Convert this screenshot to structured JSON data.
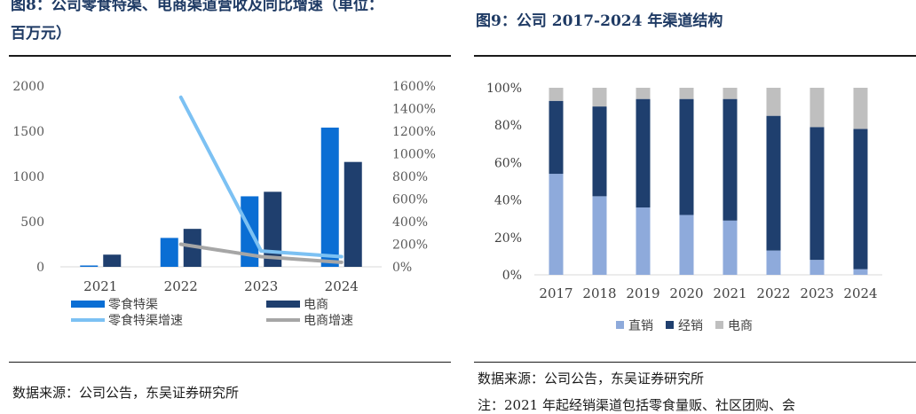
{
  "left": {
    "title_line1": "图8：公司零食特渠、电商渠道营收及同比增速（单位：",
    "title_line2": "百万元）",
    "source": "数据来源：公司公告，东吴证券研究所"
  },
  "right": {
    "title": "图9：公司 2017-2024 年渠道结构",
    "source": "数据来源：公司公告，东吴证券研究所",
    "note": "注：2021 年起经销渠道包括零食量贩、社区团购、会"
  },
  "chart_data": [
    {
      "type": "bar",
      "title": "",
      "categories": [
        "2021",
        "2022",
        "2023",
        "2024"
      ],
      "series": [
        {
          "name": "零食特渠",
          "values": [
            15,
            320,
            780,
            1540
          ],
          "color": "#0a6ed4",
          "axis": "left"
        },
        {
          "name": "电商",
          "values": [
            135,
            420,
            830,
            1160
          ],
          "color": "#1f3f6e",
          "axis": "left"
        },
        {
          "name": "零食特渠增速",
          "type": "line",
          "values": [
            null,
            1500,
            140,
            90
          ],
          "color": "#7cc1f3",
          "axis": "right"
        },
        {
          "name": "电商增速",
          "type": "line",
          "values": [
            null,
            200,
            90,
            40
          ],
          "color": "#a6a6a6",
          "axis": "right"
        }
      ],
      "yticks_left": [
        "2000",
        "1500",
        "1000",
        "500",
        "0"
      ],
      "ylim_left": [
        0,
        2000
      ],
      "yticks_right": [
        "1600%",
        "1400%",
        "1200%",
        "1000%",
        "800%",
        "600%",
        "400%",
        "200%",
        "0%"
      ],
      "ylim_right": [
        0,
        1600
      ],
      "legend": "bottom"
    },
    {
      "type": "bar",
      "stacked": true,
      "title": "",
      "categories": [
        "2017",
        "2018",
        "2019",
        "2020",
        "2021",
        "2022",
        "2023",
        "2024"
      ],
      "series": [
        {
          "name": "直销",
          "values": [
            54,
            42,
            36,
            32,
            29,
            13,
            8,
            3
          ],
          "color": "#8eaadb"
        },
        {
          "name": "经销",
          "values": [
            39,
            48,
            58,
            62,
            65,
            72,
            71,
            75
          ],
          "color": "#1f3f6e"
        },
        {
          "name": "电商",
          "values": [
            7,
            10,
            6,
            6,
            6,
            15,
            21,
            22
          ],
          "color": "#bfbfbf"
        }
      ],
      "yticks": [
        "100%",
        "80%",
        "60%",
        "40%",
        "20%",
        "0%"
      ],
      "ylim": [
        0,
        100
      ],
      "legend": "bottom"
    }
  ]
}
